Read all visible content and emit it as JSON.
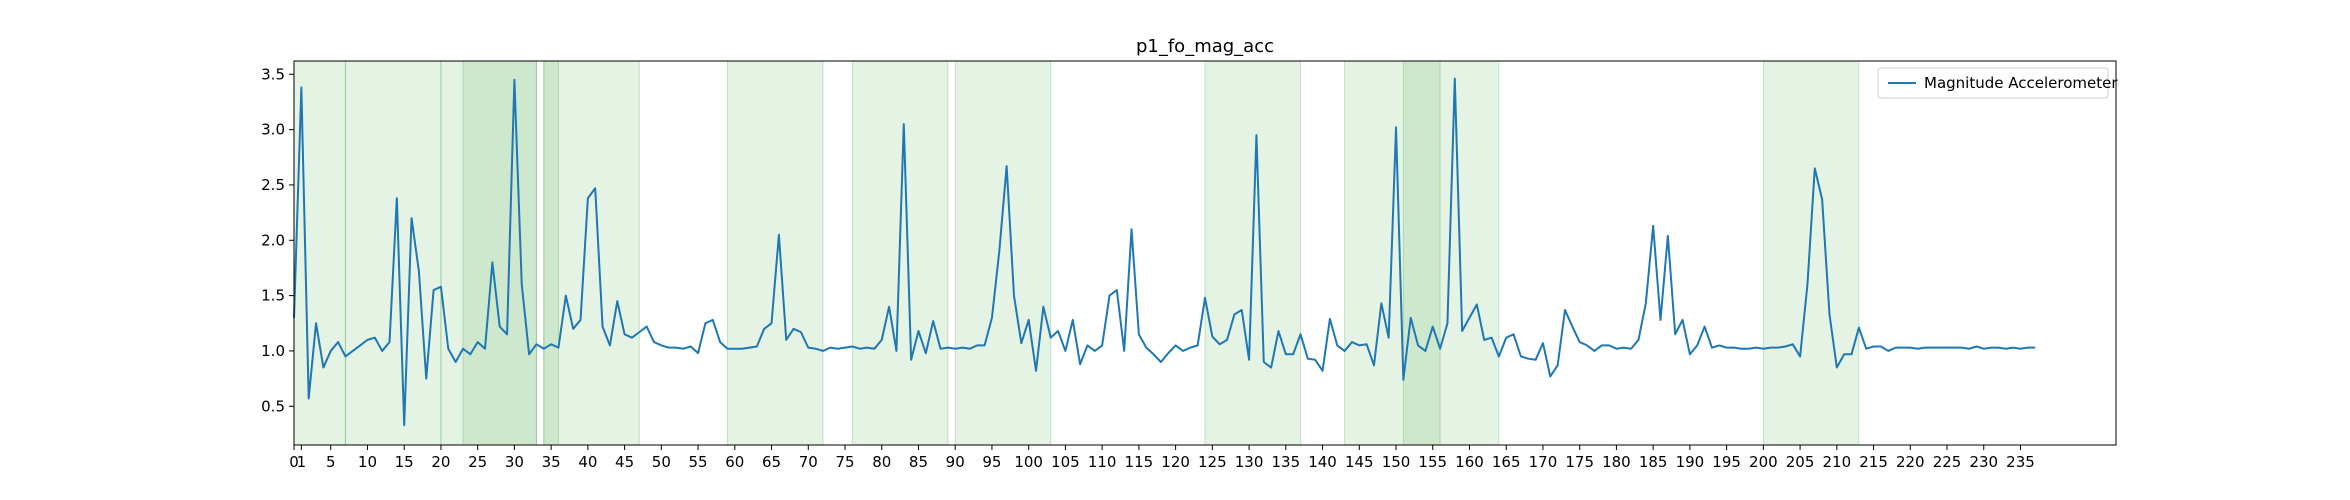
{
  "chart_data": {
    "type": "line",
    "title": "p1_fo_mag_acc",
    "xlabel": "",
    "ylabel": "",
    "xlim": [
      0,
      248
    ],
    "ylim": [
      0.15,
      3.62
    ],
    "x_ticks": [
      0,
      1,
      5,
      10,
      15,
      20,
      25,
      30,
      35,
      40,
      45,
      50,
      55,
      60,
      65,
      70,
      75,
      80,
      85,
      90,
      95,
      100,
      105,
      110,
      115,
      120,
      125,
      130,
      135,
      140,
      145,
      150,
      155,
      160,
      165,
      170,
      175,
      180,
      185,
      190,
      195,
      200,
      205,
      210,
      215,
      220,
      225,
      230,
      235
    ],
    "y_ticks": [
      0.5,
      1.0,
      1.5,
      2.0,
      2.5,
      3.0,
      3.5
    ],
    "grid": false,
    "legend": {
      "position": "top-right"
    },
    "series": [
      {
        "name": "Magnitude Accelerometer",
        "color": "#1f77b4",
        "values": [
          1.3,
          3.38,
          0.57,
          1.25,
          0.85,
          1.0,
          1.08,
          0.95,
          1.0,
          1.05,
          1.1,
          1.12,
          1.0,
          1.08,
          2.38,
          0.33,
          2.2,
          1.72,
          0.75,
          1.55,
          1.58,
          1.02,
          0.9,
          1.02,
          0.97,
          1.08,
          1.02,
          1.8,
          1.22,
          1.15,
          3.45,
          1.6,
          0.97,
          1.06,
          1.02,
          1.06,
          1.03,
          1.5,
          1.2,
          1.28,
          2.38,
          2.47,
          1.22,
          1.05,
          1.45,
          1.15,
          1.12,
          1.17,
          1.22,
          1.08,
          1.05,
          1.03,
          1.03,
          1.02,
          1.04,
          0.98,
          1.25,
          1.28,
          1.08,
          1.02,
          1.02,
          1.02,
          1.03,
          1.04,
          1.2,
          1.25,
          2.05,
          1.1,
          1.2,
          1.17,
          1.03,
          1.02,
          1.0,
          1.03,
          1.02,
          1.03,
          1.04,
          1.02,
          1.03,
          1.02,
          1.1,
          1.4,
          1.0,
          3.05,
          0.92,
          1.18,
          0.98,
          1.27,
          1.02,
          1.03,
          1.02,
          1.03,
          1.02,
          1.05,
          1.05,
          1.3,
          1.9,
          2.67,
          1.5,
          1.07,
          1.28,
          0.82,
          1.4,
          1.12,
          1.18,
          1.0,
          1.28,
          0.88,
          1.05,
          1.0,
          1.05,
          1.5,
          1.55,
          1.0,
          2.1,
          1.15,
          1.03,
          0.97,
          0.9,
          0.98,
          1.05,
          1.0,
          1.03,
          1.05,
          1.48,
          1.13,
          1.06,
          1.1,
          1.33,
          1.37,
          0.92,
          2.95,
          0.9,
          0.85,
          1.18,
          0.97,
          0.97,
          1.15,
          0.93,
          0.92,
          0.82,
          1.29,
          1.05,
          1.0,
          1.08,
          1.05,
          1.06,
          0.87,
          1.43,
          1.12,
          3.02,
          0.74,
          1.3,
          1.05,
          1.0,
          1.22,
          1.02,
          1.25,
          3.46,
          1.18,
          1.3,
          1.42,
          1.1,
          1.12,
          0.95,
          1.12,
          1.15,
          0.95,
          0.93,
          0.92,
          1.07,
          0.77,
          0.87,
          1.37,
          1.22,
          1.08,
          1.05,
          1.0,
          1.05,
          1.05,
          1.02,
          1.03,
          1.02,
          1.1,
          1.43,
          2.13,
          1.28,
          2.04,
          1.15,
          1.28,
          0.97,
          1.05,
          1.22,
          1.03,
          1.05,
          1.03,
          1.03,
          1.02,
          1.02,
          1.03,
          1.02,
          1.03,
          1.03,
          1.04,
          1.06,
          0.95,
          1.6,
          2.65,
          2.37,
          1.33,
          0.85,
          0.97,
          0.97,
          1.21,
          1.02,
          1.04,
          1.04,
          1.0,
          1.03,
          1.03,
          1.03,
          1.02,
          1.03,
          1.03,
          1.03,
          1.03,
          1.03,
          1.03,
          1.02,
          1.04,
          1.02,
          1.03,
          1.03,
          1.02,
          1.03,
          1.02,
          1.03,
          1.03
        ]
      }
    ],
    "shaded_regions": [
      {
        "start": 0,
        "end": 7
      },
      {
        "start": 7,
        "end": 20
      },
      {
        "start": 20,
        "end": 33
      },
      {
        "start": 23,
        "end": 33
      },
      {
        "start": 34,
        "end": 47
      },
      {
        "start": 34,
        "end": 36
      },
      {
        "start": 59,
        "end": 72
      },
      {
        "start": 76,
        "end": 89
      },
      {
        "start": 90,
        "end": 103
      },
      {
        "start": 124,
        "end": 137
      },
      {
        "start": 143,
        "end": 156
      },
      {
        "start": 151,
        "end": 164
      },
      {
        "start": 200,
        "end": 213
      }
    ],
    "shade_color": "#2ca02c",
    "shade_opacity": 0.12
  }
}
